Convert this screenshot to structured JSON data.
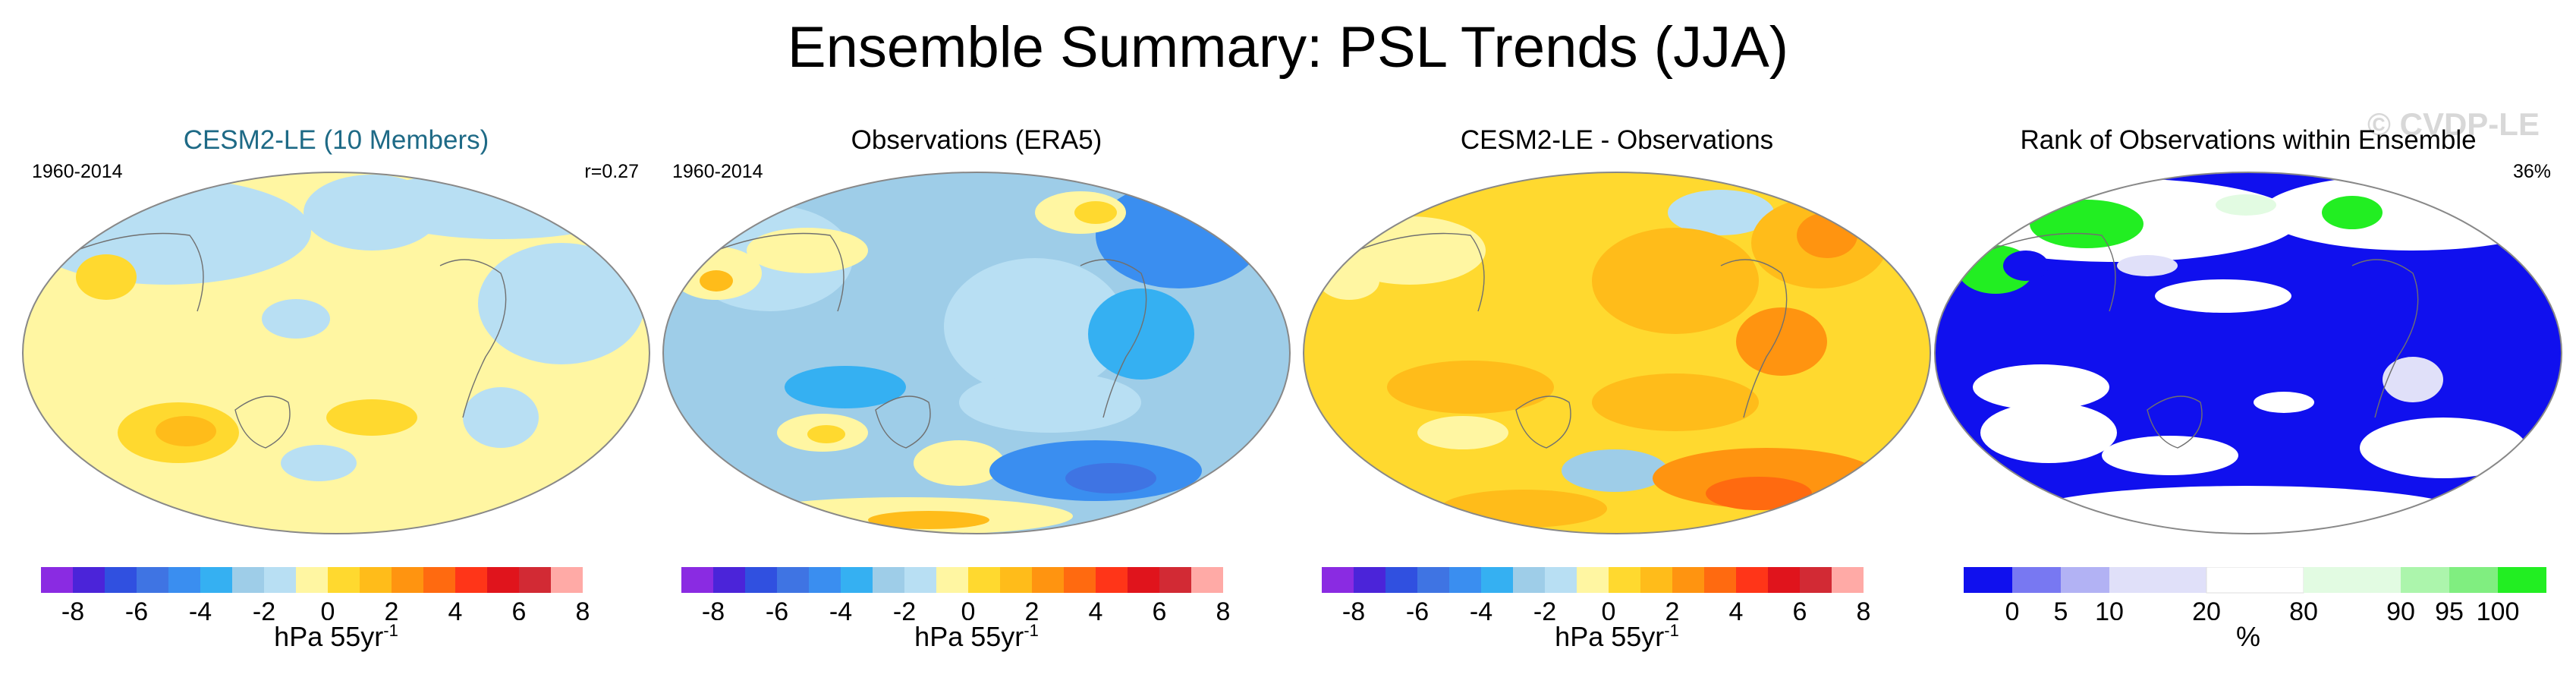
{
  "title": "Ensemble Summary: PSL Trends (JJA)",
  "watermark": "© CVDP-LE",
  "colors": {
    "psl_palette": [
      "#8a2be2",
      "#4b24d9",
      "#3050e0",
      "#3f74e3",
      "#3a8ef0",
      "#35b0f2",
      "#9ecde8",
      "#b8dff3",
      "#fff6a2",
      "#ffd92f",
      "#ffbc1a",
      "#ff9410",
      "#ff6a10",
      "#ff3518",
      "#e0141c",
      "#d22a34",
      "#ffaaa6"
    ],
    "rank_palette": [
      "#1010ee",
      "#7878f2",
      "#b2b2f4",
      "#e0e0f9",
      "#ffffff",
      "#e2fbe2",
      "#acf5ac",
      "#80ee80",
      "#22ee22"
    ],
    "coastline": "#707070"
  },
  "panels": [
    {
      "title": "CESM2-LE (10 Members)",
      "title_color": "#1e6a86",
      "period": "1960-2014",
      "stat": "r=0.27",
      "colorbar": {
        "ticks": [
          "-8",
          "-6",
          "-4",
          "-2",
          "0",
          "2",
          "4",
          "6",
          "8"
        ],
        "unit": "hPa 55yr",
        "exponent": "-1"
      }
    },
    {
      "title": "Observations (ERA5)",
      "title_color": "#000000",
      "period": "1960-2014",
      "stat": "",
      "colorbar": {
        "ticks": [
          "-8",
          "-6",
          "-4",
          "-2",
          "0",
          "2",
          "4",
          "6",
          "8"
        ],
        "unit": "hPa 55yr",
        "exponent": "-1"
      }
    },
    {
      "title": "CESM2-LE - Observations",
      "title_color": "#000000",
      "period": "",
      "stat": "",
      "colorbar": {
        "ticks": [
          "-8",
          "-6",
          "-4",
          "-2",
          "0",
          "2",
          "4",
          "6",
          "8"
        ],
        "unit": "hPa 55yr",
        "exponent": "-1"
      }
    },
    {
      "title": "Rank of Observations within Ensemble",
      "title_color": "#000000",
      "period": "",
      "stat": "36%",
      "colorbar": {
        "ticks": [
          "0",
          "5",
          "10",
          "20",
          "80",
          "90",
          "95",
          "100"
        ],
        "unit": "%",
        "exponent": ""
      }
    }
  ]
}
